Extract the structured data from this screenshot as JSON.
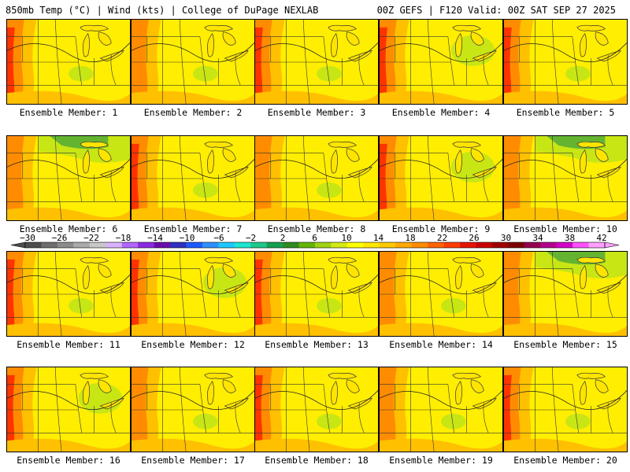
{
  "header": {
    "title_left": "850mb Temp (°C) | Wind (kts) | College of DuPage NEXLAB",
    "title_right": "00Z GEFS | F120 Valid: 00Z SAT SEP 27 2025"
  },
  "members": [
    {
      "label": "Ensemble Member: 1",
      "variant": 1
    },
    {
      "label": "Ensemble Member: 2",
      "variant": 0
    },
    {
      "label": "Ensemble Member: 3",
      "variant": 1
    },
    {
      "label": "Ensemble Member: 4",
      "variant": 2
    },
    {
      "label": "Ensemble Member: 5",
      "variant": 1
    },
    {
      "label": "Ensemble Member: 6",
      "variant": 3
    },
    {
      "label": "Ensemble Member: 7",
      "variant": 1
    },
    {
      "label": "Ensemble Member: 8",
      "variant": 0
    },
    {
      "label": "Ensemble Member: 9",
      "variant": 2
    },
    {
      "label": "Ensemble Member: 10",
      "variant": 3
    },
    {
      "label": "Ensemble Member: 11",
      "variant": 1
    },
    {
      "label": "Ensemble Member: 12",
      "variant": 2
    },
    {
      "label": "Ensemble Member: 13",
      "variant": 1
    },
    {
      "label": "Ensemble Member: 14",
      "variant": 0
    },
    {
      "label": "Ensemble Member: 15",
      "variant": 3
    },
    {
      "label": "Ensemble Member: 16",
      "variant": 2
    },
    {
      "label": "Ensemble Member: 17",
      "variant": 0
    },
    {
      "label": "Ensemble Member: 18",
      "variant": 1
    },
    {
      "label": "Ensemble Member: 19",
      "variant": 0
    },
    {
      "label": "Ensemble Member: 20",
      "variant": 1
    }
  ],
  "colorbar": {
    "labels": [
      "−30",
      "−26",
      "−22",
      "−18",
      "−14",
      "−10",
      "−6",
      "−2",
      "2",
      "6",
      "10",
      "14",
      "18",
      "22",
      "26",
      "30",
      "34",
      "38",
      "42"
    ],
    "colors": [
      "#4d4d4d",
      "#6e6e6e",
      "#8c8c8c",
      "#aaaaaa",
      "#c8c8c8",
      "#d9b3ff",
      "#b366ff",
      "#8a2be2",
      "#6a0dad",
      "#3030c0",
      "#1e5aff",
      "#2e8fff",
      "#1ec8ff",
      "#1ee6d0",
      "#1ec88c",
      "#14a050",
      "#2e8b22",
      "#64b40a",
      "#a0d214",
      "#d2eb14",
      "#ffff00",
      "#ffe600",
      "#ffc800",
      "#ffaa00",
      "#ff8c00",
      "#ff6400",
      "#ff3c00",
      "#e61400",
      "#c80000",
      "#a00000",
      "#7d0000",
      "#960050",
      "#b4008c",
      "#d200c8",
      "#ff50ff",
      "#ffa0ff"
    ]
  },
  "map_colors": {
    "hot": "#ff3300",
    "warm": "#ff8c00",
    "mild": "#ffc000",
    "yellow": "#ffee00",
    "cool": "#c8e614",
    "cold": "#64b432",
    "lake": "#ffe400",
    "border": "#333333"
  }
}
